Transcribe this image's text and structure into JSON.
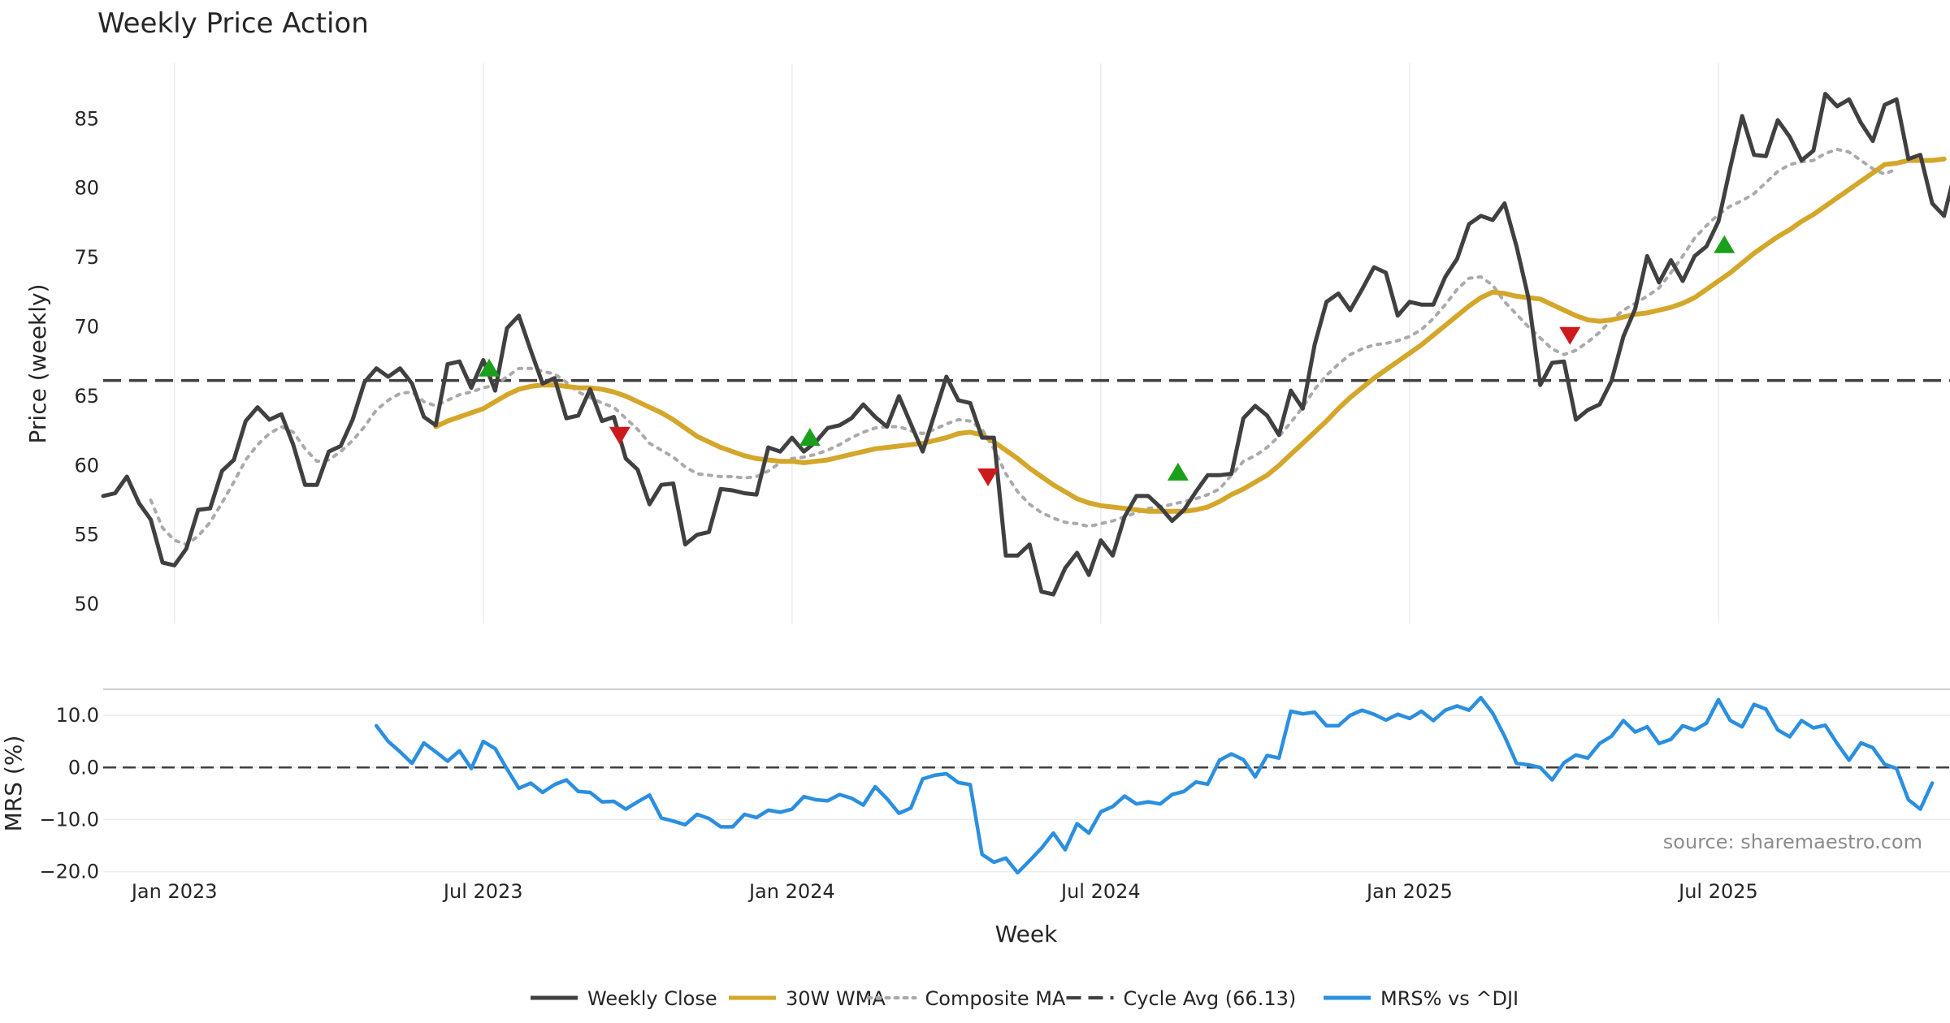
{
  "chart_data": {
    "type": "line",
    "title": "Weekly Price Action",
    "xlabel": "Week",
    "source": "source: sharemaestro.com",
    "x_ticks": [
      {
        "label": "Jan 2023",
        "week": 6
      },
      {
        "label": "Jul 2023",
        "week": 32
      },
      {
        "label": "Jan 2024",
        "week": 58
      },
      {
        "label": "Jul 2024",
        "week": 84
      },
      {
        "label": "Jan 2025",
        "week": 110
      },
      {
        "label": "Jul 2025",
        "week": 136
      }
    ],
    "x_range": [
      0,
      155.5
    ],
    "price_panel": {
      "ylabel": "Price (weekly)",
      "ylim": [
        48.6,
        89.0
      ],
      "yticks": [
        "50",
        "55",
        "60",
        "65",
        "70",
        "75",
        "80",
        "85"
      ],
      "cycle_avg": 66.13,
      "weekly_close": [
        57.8,
        58.0,
        59.2,
        57.3,
        56.1,
        53.0,
        52.8,
        54.0,
        56.8,
        56.9,
        59.6,
        60.4,
        63.2,
        64.2,
        63.3,
        63.7,
        61.5,
        58.6,
        58.6,
        61.0,
        61.4,
        63.3,
        66.0,
        67.0,
        66.4,
        67.0,
        65.9,
        63.5,
        62.9,
        67.3,
        67.5,
        65.6,
        67.6,
        65.4,
        69.9,
        70.8,
        68.3,
        65.9,
        66.3,
        63.4,
        63.6,
        65.5,
        63.2,
        63.5,
        60.5,
        59.7,
        57.2,
        58.6,
        58.7,
        54.3,
        55.0,
        55.2,
        58.3,
        58.2,
        58.0,
        57.9,
        61.3,
        61.0,
        62.0,
        61.0,
        61.7,
        62.7,
        62.9,
        63.4,
        64.4,
        63.5,
        62.8,
        65.0,
        63.0,
        61.0,
        63.7,
        66.4,
        64.7,
        64.5,
        62.0,
        62.0,
        53.5,
        53.5,
        54.3,
        50.9,
        50.7,
        52.6,
        53.7,
        52.1,
        54.6,
        53.5,
        56.3,
        57.8,
        57.8,
        57.0,
        56.0,
        56.8,
        58.1,
        59.3,
        59.3,
        59.4,
        63.4,
        64.3,
        63.6,
        62.2,
        65.4,
        64.1,
        68.7,
        71.8,
        72.4,
        71.2,
        72.7,
        74.3,
        73.9,
        70.8,
        71.8,
        71.6,
        71.6,
        73.6,
        74.9,
        77.4,
        78.0,
        77.7,
        78.9,
        75.8,
        72.1,
        65.8,
        67.4,
        67.5,
        63.3,
        64.0,
        64.4,
        66.1,
        69.3,
        71.3,
        75.1,
        73.2,
        74.8,
        73.3,
        75.1,
        75.8,
        77.6,
        81.5,
        85.2,
        82.4,
        82.3,
        84.9,
        83.7,
        82.0,
        82.7,
        86.8,
        85.9,
        86.4,
        84.7,
        83.4,
        86.0,
        86.4,
        82.1,
        82.4,
        78.9,
        78.0,
        81.4
      ],
      "wma_30w": [
        null,
        null,
        null,
        null,
        null,
        null,
        null,
        null,
        null,
        null,
        null,
        null,
        null,
        null,
        null,
        null,
        null,
        null,
        null,
        null,
        null,
        null,
        null,
        null,
        null,
        null,
        null,
        null,
        62.8,
        63.2,
        63.5,
        63.8,
        64.1,
        64.6,
        65.1,
        65.5,
        65.7,
        65.8,
        65.8,
        65.7,
        65.6,
        65.6,
        65.5,
        65.3,
        65.0,
        64.6,
        64.2,
        63.8,
        63.3,
        62.7,
        62.1,
        61.7,
        61.3,
        61.0,
        60.7,
        60.5,
        60.4,
        60.3,
        60.3,
        60.2,
        60.3,
        60.4,
        60.6,
        60.8,
        61.0,
        61.2,
        61.3,
        61.4,
        61.5,
        61.6,
        61.8,
        62.0,
        62.3,
        62.4,
        62.2,
        61.7,
        61.1,
        60.5,
        59.8,
        59.2,
        58.6,
        58.1,
        57.6,
        57.3,
        57.1,
        57.0,
        56.9,
        56.8,
        56.7,
        56.7,
        56.7,
        56.7,
        56.8,
        57.0,
        57.4,
        57.9,
        58.3,
        58.8,
        59.3,
        60.0,
        60.8,
        61.6,
        62.4,
        63.2,
        64.1,
        64.9,
        65.6,
        66.3,
        66.9,
        67.5,
        68.1,
        68.7,
        69.4,
        70.1,
        70.8,
        71.5,
        72.1,
        72.5,
        72.4,
        72.2,
        72.1,
        72.0,
        71.6,
        71.2,
        70.8,
        70.5,
        70.4,
        70.5,
        70.7,
        70.9,
        71.0,
        71.2,
        71.4,
        71.7,
        72.1,
        72.7,
        73.3,
        73.9,
        74.6,
        75.3,
        75.9,
        76.5,
        77.0,
        77.6,
        78.1,
        78.7,
        79.3,
        79.9,
        80.5,
        81.1,
        81.7,
        81.8,
        82.0,
        82.0,
        82.0,
        82.1
      ],
      "composite_ma": [
        null,
        null,
        null,
        null,
        57.5,
        55.5,
        54.6,
        54.3,
        54.9,
        55.9,
        57.3,
        58.8,
        60.4,
        61.5,
        62.3,
        62.8,
        62.4,
        61.2,
        60.3,
        60.4,
        61.0,
        61.8,
        62.8,
        64.0,
        64.7,
        65.2,
        65.3,
        64.6,
        64.3,
        64.7,
        65.1,
        65.3,
        65.6,
        65.8,
        66.4,
        67.0,
        67.0,
        66.8,
        66.6,
        66.0,
        65.3,
        64.9,
        64.5,
        64.2,
        63.4,
        62.6,
        61.6,
        61.1,
        60.6,
        59.9,
        59.4,
        59.3,
        59.2,
        59.2,
        59.1,
        59.2,
        59.6,
        60.2,
        60.5,
        60.6,
        60.8,
        61.1,
        61.5,
        62.0,
        62.4,
        62.7,
        62.8,
        62.8,
        62.5,
        62.3,
        62.6,
        63.0,
        63.3,
        63.2,
        62.6,
        61.2,
        59.4,
        58.1,
        57.2,
        56.6,
        56.2,
        55.9,
        55.8,
        55.6,
        55.8,
        56.0,
        56.3,
        56.6,
        56.9,
        57.0,
        57.2,
        57.4,
        57.6,
        57.9,
        58.3,
        59.3,
        60.3,
        60.7,
        61.3,
        62.1,
        63.1,
        64.2,
        65.5,
        66.5,
        67.3,
        68.0,
        68.4,
        68.7,
        68.8,
        69.0,
        69.3,
        69.8,
        70.6,
        71.6,
        72.7,
        73.5,
        73.6,
        73.0,
        71.8,
        70.9,
        70.0,
        69.2,
        68.4,
        68.0,
        68.3,
        68.9,
        69.6,
        70.5,
        71.2,
        71.7,
        72.2,
        72.8,
        73.9,
        75.1,
        76.4,
        77.3,
        78.1,
        78.7,
        79.1,
        79.6,
        80.4,
        81.2,
        81.7,
        81.9,
        82.0,
        82.5,
        82.8,
        82.6,
        82.0,
        81.4,
        81.0,
        81.4
      ],
      "buy_signals": [
        {
          "week": 32.5,
          "price": 67.0
        },
        {
          "week": 59.5,
          "price": 62.0
        },
        {
          "week": 90.5,
          "price": 59.5
        },
        {
          "week": 136.5,
          "price": 75.9
        }
      ],
      "sell_signals": [
        {
          "week": 43.5,
          "price": 62.2
        },
        {
          "week": 74.5,
          "price": 59.2
        },
        {
          "week": 123.5,
          "price": 69.4
        }
      ]
    },
    "mrs_panel": {
      "ylabel": "MRS (%)",
      "ylim": [
        -21.0,
        15.0
      ],
      "yticks": [
        "10.0",
        "0.0",
        "−10.0",
        "−20.0"
      ],
      "series_start_week": 23,
      "mrs": [
        8.0,
        5.0,
        3.0,
        0.8,
        4.7,
        3.0,
        1.2,
        3.2,
        -0.2,
        5.0,
        3.6,
        -0.3,
        -4.0,
        -3.0,
        -4.8,
        -3.3,
        -2.4,
        -4.6,
        -4.8,
        -6.6,
        -6.5,
        -8.0,
        -6.6,
        -5.3,
        -9.7,
        -10.3,
        -11.0,
        -9.0,
        -9.8,
        -11.4,
        -11.4,
        -9.0,
        -9.6,
        -8.2,
        -8.6,
        -8.0,
        -5.6,
        -6.2,
        -6.4,
        -5.2,
        -5.9,
        -7.2,
        -3.7,
        -6.0,
        -8.8,
        -7.8,
        -2.2,
        -1.5,
        -1.2,
        -2.9,
        -3.3,
        -16.7,
        -18.2,
        -17.4,
        -20.2,
        -17.9,
        -15.5,
        -12.6,
        -15.8,
        -10.8,
        -12.6,
        -8.5,
        -7.5,
        -5.5,
        -7.0,
        -6.6,
        -7.0,
        -5.2,
        -4.6,
        -2.8,
        -3.2,
        1.4,
        2.6,
        1.5,
        -1.8,
        2.3,
        1.8,
        10.8,
        10.3,
        10.6,
        8.0,
        8.0,
        10.0,
        11.0,
        10.2,
        9.1,
        10.2,
        9.4,
        10.8,
        9.0,
        11.0,
        11.8,
        11.0,
        13.4,
        10.4,
        6.0,
        0.8,
        0.5,
        0.0,
        -2.4,
        0.9,
        2.4,
        1.8,
        4.6,
        6.0,
        9.0,
        6.8,
        7.8,
        4.6,
        5.4,
        8.0,
        7.2,
        8.5,
        13.0,
        9.0,
        7.8,
        12.1,
        11.2,
        7.2,
        5.9,
        9.0,
        7.6,
        8.1,
        4.6,
        1.4,
        4.7,
        3.8,
        0.6,
        -0.2,
        -6.2,
        -8.0,
        -3.0
      ]
    },
    "legend": [
      {
        "label": "Weekly Close",
        "color": "#404040",
        "style": "solid"
      },
      {
        "label": "30W WMA",
        "color": "#d4a62a",
        "style": "solid"
      },
      {
        "label": "Composite MA",
        "color": "#aaaaaa",
        "style": "dotted"
      },
      {
        "label": "Cycle Avg (66.13)",
        "color": "#404040",
        "style": "dashed"
      },
      {
        "label": "MRS% vs ^DJI",
        "color": "#2b8fe0",
        "style": "solid"
      }
    ],
    "colors": {
      "close": "#404040",
      "wma": "#d4a62a",
      "composite": "#aaaaaa",
      "cycle": "#404040",
      "mrs": "#2b8fe0",
      "buy": "#1aa01a",
      "sell": "#cc1a1a",
      "grid": "#ebebeb"
    }
  }
}
